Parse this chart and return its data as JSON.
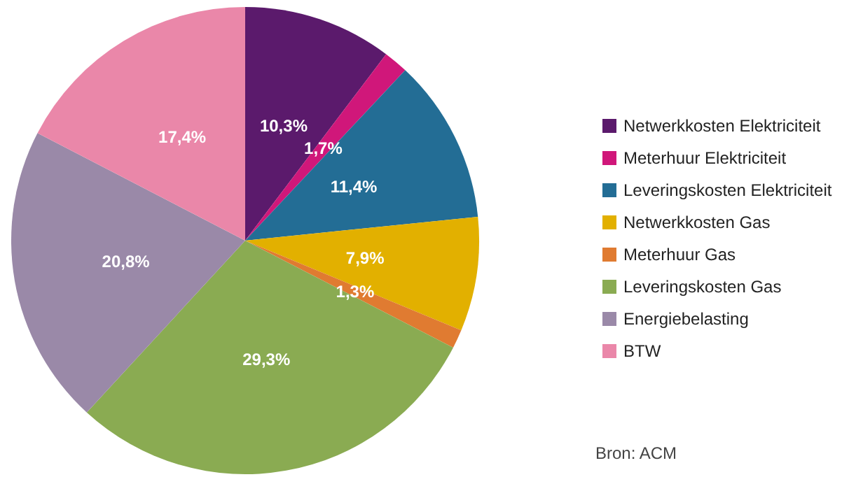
{
  "chart_data": {
    "type": "pie",
    "categories": [
      "Netwerkkosten Elektriciteit",
      "Meterhuur Elektriciteit",
      "Leveringskosten Elektriciteit",
      "Netwerkkosten Gas",
      "Meterhuur Gas",
      "Leveringskosten Gas",
      "Energiebelasting",
      "BTW"
    ],
    "values": [
      10.3,
      1.7,
      11.4,
      7.9,
      1.3,
      29.3,
      20.8,
      17.4
    ],
    "value_labels": [
      "10,3%",
      "1,7%",
      "11,4%",
      "7,9%",
      "1,3%",
      "29,3%",
      "20,8%",
      "17,4%"
    ],
    "colors": [
      "#5b1a6c",
      "#d0177a",
      "#236d95",
      "#e2b000",
      "#e07b31",
      "#8aab52",
      "#9a89a8",
      "#ea87a9"
    ],
    "legend": "right",
    "annotations": [
      "Bron: ACM"
    ]
  }
}
